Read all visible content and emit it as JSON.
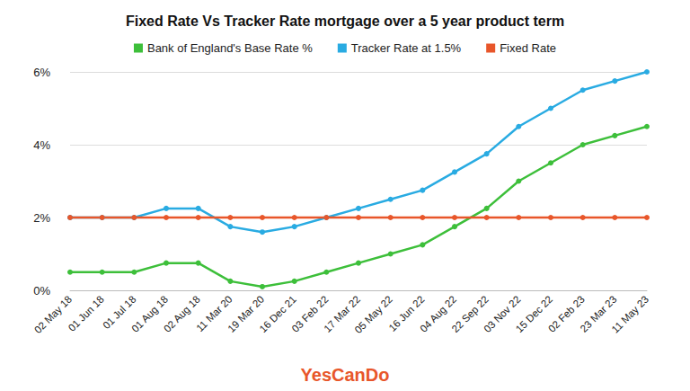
{
  "chart_data": {
    "type": "line",
    "title": "Fixed Rate Vs Tracker Rate mortgage over a 5 year product term",
    "categories": [
      "02 May 18",
      "01 Jun 18",
      "01 Jul 18",
      "01 Aug 18",
      "02 Aug 18",
      "11 Mar 20",
      "19 Mar 20",
      "16 Dec 21",
      "03 Feb 22",
      "17 Mar 22",
      "05 May 22",
      "16 Jun 22",
      "04 Aug 22",
      "22 Sep 22",
      "03 Nov 22",
      "15 Dec 22",
      "02 Feb 23",
      "23 Mar 23",
      "11 May 23"
    ],
    "series": [
      {
        "name": "Bank of England's Base Rate %",
        "color": "#3dbf3a",
        "marker": "circle",
        "values": [
          0.5,
          0.5,
          0.5,
          0.75,
          0.75,
          0.25,
          0.1,
          0.25,
          0.5,
          0.75,
          1.0,
          1.25,
          1.75,
          2.25,
          3.0,
          3.5,
          4.0,
          4.25,
          4.5
        ]
      },
      {
        "name": "Tracker Rate at 1.5%",
        "color": "#29abe2",
        "marker": "circle",
        "values": [
          2.0,
          2.0,
          2.0,
          2.25,
          2.25,
          1.75,
          1.6,
          1.75,
          2.0,
          2.25,
          2.5,
          2.75,
          3.25,
          3.75,
          4.5,
          5.0,
          5.5,
          5.75,
          6.0
        ]
      },
      {
        "name": "Fixed Rate",
        "color": "#e8562a",
        "marker": "circle",
        "values": [
          2,
          2,
          2,
          2,
          2,
          2,
          2,
          2,
          2,
          2,
          2,
          2,
          2,
          2,
          2,
          2,
          2,
          2,
          2
        ]
      }
    ],
    "ylim": [
      0,
      6
    ],
    "yticks": [
      {
        "value": 0,
        "label": "0%"
      },
      {
        "value": 2,
        "label": "2%"
      },
      {
        "value": 4,
        "label": "4%"
      },
      {
        "value": 6,
        "label": "6%"
      }
    ],
    "grid": true,
    "legend": "top",
    "annotations": [
      "YesCanDo"
    ]
  }
}
